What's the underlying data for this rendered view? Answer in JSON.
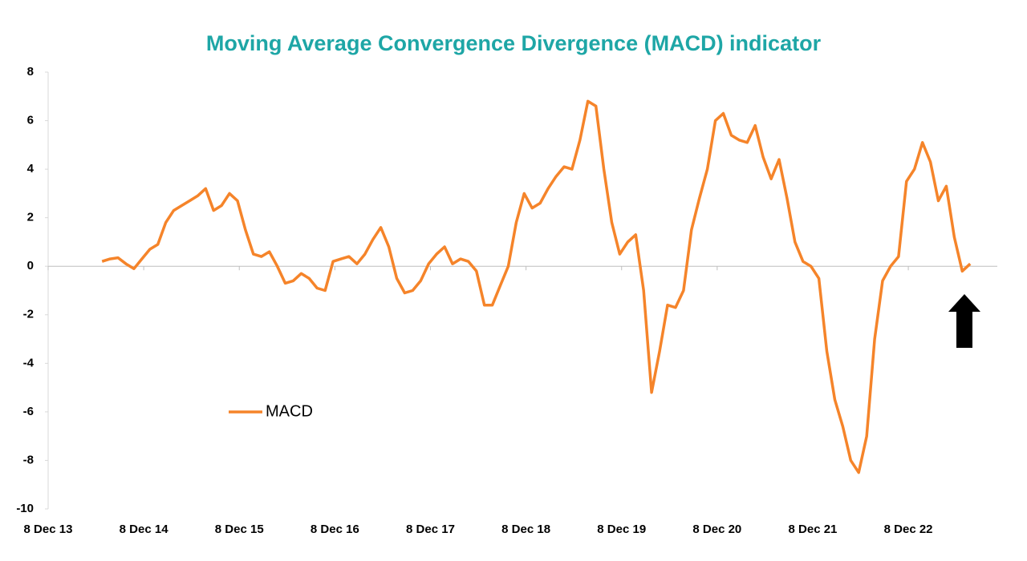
{
  "chart_data": {
    "type": "line",
    "title": "Moving Average Convergence Divergence (MACD) indicator",
    "x": [
      "2014-07",
      "2014-08",
      "2014-09",
      "2014-10",
      "2014-11",
      "2014-12",
      "2015-01",
      "2015-02",
      "2015-03",
      "2015-04",
      "2015-05",
      "2015-06",
      "2015-07",
      "2015-08",
      "2015-09",
      "2015-10",
      "2015-11",
      "2015-12",
      "2016-01",
      "2016-02",
      "2016-03",
      "2016-04",
      "2016-05",
      "2016-06",
      "2016-07",
      "2016-08",
      "2016-09",
      "2016-10",
      "2016-11",
      "2016-12",
      "2017-01",
      "2017-02",
      "2017-03",
      "2017-04",
      "2017-05",
      "2017-06",
      "2017-07",
      "2017-08",
      "2017-09",
      "2017-10",
      "2017-11",
      "2017-12",
      "2018-01",
      "2018-02",
      "2018-03",
      "2018-04",
      "2018-05",
      "2018-06",
      "2018-07",
      "2018-08",
      "2018-09",
      "2018-10",
      "2018-11",
      "2018-12",
      "2019-01",
      "2019-02",
      "2019-03",
      "2019-04",
      "2019-05",
      "2019-06",
      "2019-07",
      "2019-08",
      "2019-09",
      "2019-10",
      "2019-11",
      "2019-12",
      "2020-01",
      "2020-02",
      "2020-03",
      "2020-04",
      "2020-05",
      "2020-06",
      "2020-07",
      "2020-08",
      "2020-09",
      "2020-10",
      "2020-11",
      "2020-12",
      "2021-01",
      "2021-02",
      "2021-03",
      "2021-04",
      "2021-05",
      "2021-06",
      "2021-07",
      "2021-08",
      "2021-09",
      "2021-10",
      "2021-11",
      "2021-12",
      "2022-01",
      "2022-02",
      "2022-03",
      "2022-04",
      "2022-05",
      "2022-06",
      "2022-07",
      "2022-08",
      "2022-09",
      "2022-10",
      "2022-11",
      "2022-12",
      "2023-01",
      "2023-02",
      "2023-03",
      "2023-04",
      "2023-05",
      "2023-06",
      "2023-07",
      "2023-08"
    ],
    "series": [
      {
        "name": "MACD",
        "color": "#f5842a",
        "values": [
          0.2,
          0.3,
          0.35,
          0.1,
          -0.1,
          0.3,
          0.7,
          0.9,
          1.8,
          2.3,
          2.5,
          2.7,
          2.9,
          3.2,
          2.3,
          2.5,
          3.0,
          2.7,
          1.5,
          0.5,
          0.4,
          0.6,
          0,
          -0.7,
          -0.6,
          -0.3,
          -0.5,
          -0.9,
          -1.0,
          0.2,
          0.3,
          0.4,
          0.1,
          0.5,
          1.1,
          1.6,
          0.8,
          -0.5,
          -1.1,
          -1.0,
          -0.6,
          0.1,
          0.5,
          0.8,
          0.1,
          0.3,
          0.2,
          -0.2,
          -1.6,
          -1.6,
          -0.8,
          0,
          1.8,
          3.0,
          2.4,
          2.6,
          3.2,
          3.7,
          4.1,
          4.0,
          5.2,
          6.8,
          6.6,
          4.0,
          1.8,
          0.5,
          1.0,
          1.3,
          -1.0,
          -5.2,
          -3.5,
          -1.6,
          -1.7,
          -1.0,
          1.5,
          2.8,
          4.0,
          6.0,
          6.3,
          5.4,
          5.2,
          5.1,
          5.8,
          4.5,
          3.6,
          4.4,
          2.8,
          1.0,
          0.2,
          0,
          -0.5,
          -3.5,
          -5.5,
          -6.6,
          -8.0,
          -8.5,
          -7.0,
          -3.0,
          -0.6,
          0,
          0.4,
          3.5,
          4.0,
          5.1,
          4.3,
          2.7,
          3.3,
          1.2,
          -0.2,
          0.1
        ]
      }
    ],
    "xlim": [
      "2013-12-08",
      "2023-11"
    ],
    "xticks": [
      {
        "value": "2013-12-08",
        "label": "8 Dec 13"
      },
      {
        "value": "2014-12-08",
        "label": "8 Dec 14"
      },
      {
        "value": "2015-12-08",
        "label": "8 Dec 15"
      },
      {
        "value": "2016-12-08",
        "label": "8 Dec 16"
      },
      {
        "value": "2017-12-08",
        "label": "8 Dec 17"
      },
      {
        "value": "2018-12-08",
        "label": "8 Dec 18"
      },
      {
        "value": "2019-12-08",
        "label": "8 Dec 19"
      },
      {
        "value": "2020-12-08",
        "label": "8 Dec 20"
      },
      {
        "value": "2021-12-08",
        "label": "8 Dec 21"
      },
      {
        "value": "2022-12-08",
        "label": "8 Dec 22"
      }
    ],
    "ylim": [
      -10,
      8
    ],
    "yticks": [
      -10,
      -8,
      -6,
      -4,
      -2,
      0,
      2,
      4,
      6,
      8
    ],
    "grid": false,
    "legend": "left"
  }
}
